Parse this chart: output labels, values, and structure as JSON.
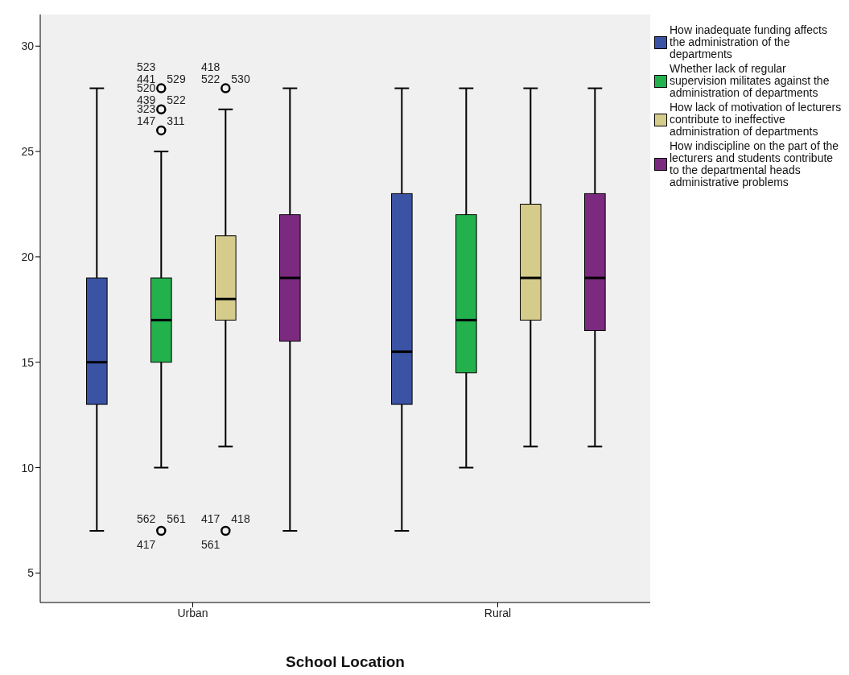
{
  "chart_data": {
    "type": "box",
    "xlabel": "School Location",
    "categories": [
      "Urban",
      "Rural"
    ],
    "ylim": [
      3.6,
      31.5
    ],
    "yticks": [
      5,
      10,
      15,
      20,
      25,
      30
    ],
    "grid": false,
    "legend": "right",
    "series": [
      {
        "name": "How inadequate funding affects the administration of the departments",
        "color": "#3a53a4",
        "boxes": [
          {
            "low": 7,
            "q1": 13,
            "median": 15,
            "q3": 19,
            "high": 28
          },
          {
            "low": 7,
            "q1": 13,
            "median": 15.5,
            "q3": 23,
            "high": 28
          }
        ]
      },
      {
        "name": "Whether lack of regular supervision militates against the administration of departments",
        "color": "#22b14c",
        "boxes": [
          {
            "low": 10,
            "q1": 15,
            "median": 17,
            "q3": 19,
            "high": 25,
            "outliers": [
              7,
              26,
              27,
              28
            ]
          },
          {
            "low": 10,
            "q1": 14.5,
            "median": 17,
            "q3": 22,
            "high": 28
          }
        ]
      },
      {
        "name": "How lack of motivation of lecturers contribute to ineffective administration of departments",
        "color": "#d5cc8c",
        "boxes": [
          {
            "low": 11,
            "q1": 17,
            "median": 18,
            "q3": 21,
            "high": 27,
            "outliers": [
              7,
              28
            ]
          },
          {
            "low": 11,
            "q1": 17,
            "median": 19,
            "q3": 22.5,
            "high": 28
          }
        ]
      },
      {
        "name": "How indiscipline on the part of the lecturers and students contribute to the departmental heads administrative problems",
        "color": "#7b2a7f",
        "boxes": [
          {
            "low": 7,
            "q1": 16,
            "median": 19,
            "q3": 22,
            "high": 28
          },
          {
            "low": 11,
            "q1": 16.5,
            "median": 19,
            "q3": 23,
            "high": 28
          }
        ]
      }
    ],
    "annotations": [
      "441",
      "529",
      "523",
      "439",
      "522",
      "520",
      "147",
      "311",
      "323",
      "562",
      "561",
      "417",
      "522",
      "530",
      "418",
      "417",
      "418",
      "561"
    ]
  }
}
